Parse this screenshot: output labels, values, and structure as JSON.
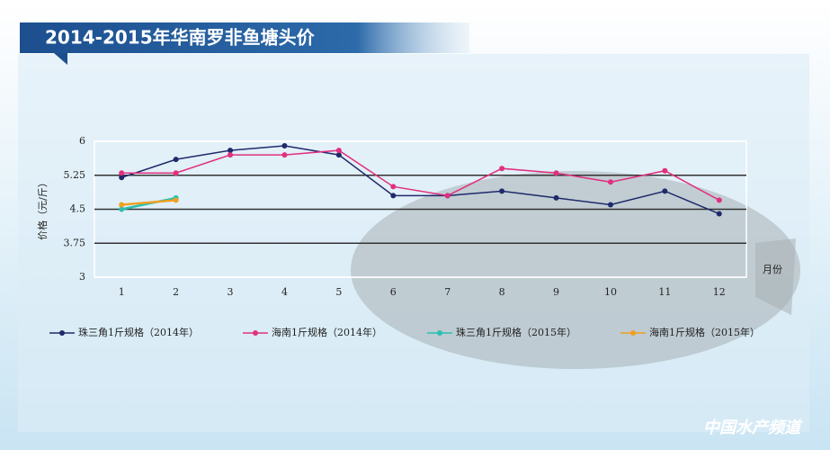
{
  "chart_data": {
    "type": "line",
    "title": "2014-2015年华南罗非鱼塘头价",
    "y_label": "价格（元/斤）",
    "x_label": "月份",
    "categories": [
      "1",
      "2",
      "3",
      "4",
      "5",
      "6",
      "7",
      "8",
      "9",
      "10",
      "11",
      "12"
    ],
    "series": [
      {
        "name": "珠三角1斤规格（2014年）",
        "color": "#1f2a6b",
        "values": [
          5.2,
          5.6,
          5.8,
          5.9,
          5.7,
          4.8,
          4.8,
          4.9,
          4.75,
          4.6,
          4.9,
          4.4
        ]
      },
      {
        "name": "海南1斤规格（2014年）",
        "color": "#e0307f",
        "values": [
          5.3,
          5.3,
          5.7,
          5.7,
          5.8,
          5.0,
          4.8,
          5.4,
          5.3,
          5.1,
          5.35,
          4.7
        ]
      },
      {
        "name": "珠三角1斤规格（2015年）",
        "color": "#2bbfb0",
        "values": [
          4.5,
          4.75,
          null,
          null,
          null,
          null,
          null,
          null,
          null,
          null,
          null,
          null
        ]
      },
      {
        "name": "海南1斤规格（2015年）",
        "color": "#f0a020",
        "values": [
          4.6,
          4.7,
          null,
          null,
          null,
          null,
          null,
          null,
          null,
          null,
          null,
          null
        ]
      }
    ],
    "ylim": [
      3,
      6
    ],
    "yticks": [
      3,
      3.75,
      4.5,
      5.25,
      6
    ],
    "grid": true,
    "watermark": "中国水产频道"
  }
}
